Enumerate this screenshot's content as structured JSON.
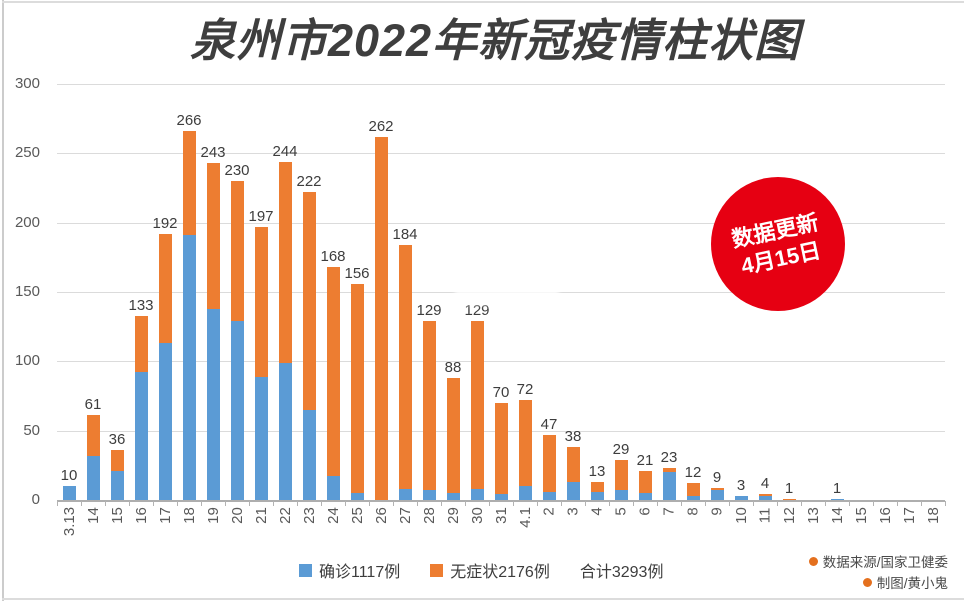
{
  "title": "泉州市2022年新冠疫情柱状图",
  "badge": {
    "line1": "数据更新",
    "line2": "4月15日",
    "color": "#e60012"
  },
  "legend": {
    "confirmed": "确诊1117例",
    "asymptomatic": "无症状2176例",
    "total": "合计3293例"
  },
  "credits": {
    "source": "数据来源/国家卫健委",
    "author": "制图/黄小鬼",
    "bullet_color": "#e4701e"
  },
  "artifact": {
    "smudged_label_category": "30",
    "smudged_label_index": 17
  },
  "chart_data": {
    "type": "bar",
    "stacked": true,
    "title": "泉州市2022年新冠疫情柱状图",
    "categories": [
      "3.13",
      "14",
      "15",
      "16",
      "17",
      "18",
      "19",
      "20",
      "21",
      "22",
      "23",
      "24",
      "25",
      "26",
      "27",
      "28",
      "29",
      "30",
      "31",
      "4.1",
      "2",
      "3",
      "4",
      "5",
      "6",
      "7",
      "8",
      "9",
      "10",
      "11",
      "12",
      "13",
      "14",
      "15",
      "16",
      "17",
      "18"
    ],
    "series": [
      {
        "name": "确诊",
        "legend_label": "确诊1117例",
        "color": "#5b9bd5",
        "values": [
          10,
          32,
          21,
          92,
          113,
          191,
          138,
          129,
          89,
          99,
          65,
          17,
          5,
          0,
          8,
          7,
          5,
          8,
          4,
          10,
          6,
          13,
          6,
          7,
          5,
          20,
          3,
          7,
          3,
          3,
          0,
          0,
          1,
          0,
          0,
          0,
          0
        ]
      },
      {
        "name": "无症状",
        "legend_label": "无症状2176例",
        "color": "#ed7d31",
        "values": [
          0,
          29,
          15,
          41,
          79,
          75,
          105,
          101,
          108,
          145,
          157,
          151,
          151,
          262,
          176,
          122,
          83,
          121,
          66,
          62,
          41,
          25,
          7,
          22,
          16,
          3,
          9,
          2,
          0,
          1,
          1,
          0,
          0,
          0,
          0,
          0,
          0
        ]
      }
    ],
    "totals": [
      10,
      61,
      36,
      133,
      192,
      266,
      243,
      230,
      197,
      244,
      222,
      168,
      156,
      262,
      184,
      129,
      88,
      129,
      70,
      72,
      47,
      38,
      13,
      29,
      21,
      23,
      12,
      9,
      3,
      4,
      1,
      0,
      1,
      0,
      0,
      0,
      0
    ],
    "grand_total": 3293,
    "xlabel": "",
    "ylabel": "",
    "ylim": [
      0,
      300
    ],
    "yticks": [
      0,
      50,
      100,
      150,
      200,
      250,
      300
    ],
    "grid": true,
    "data_labels": true,
    "legend_position": "bottom"
  }
}
